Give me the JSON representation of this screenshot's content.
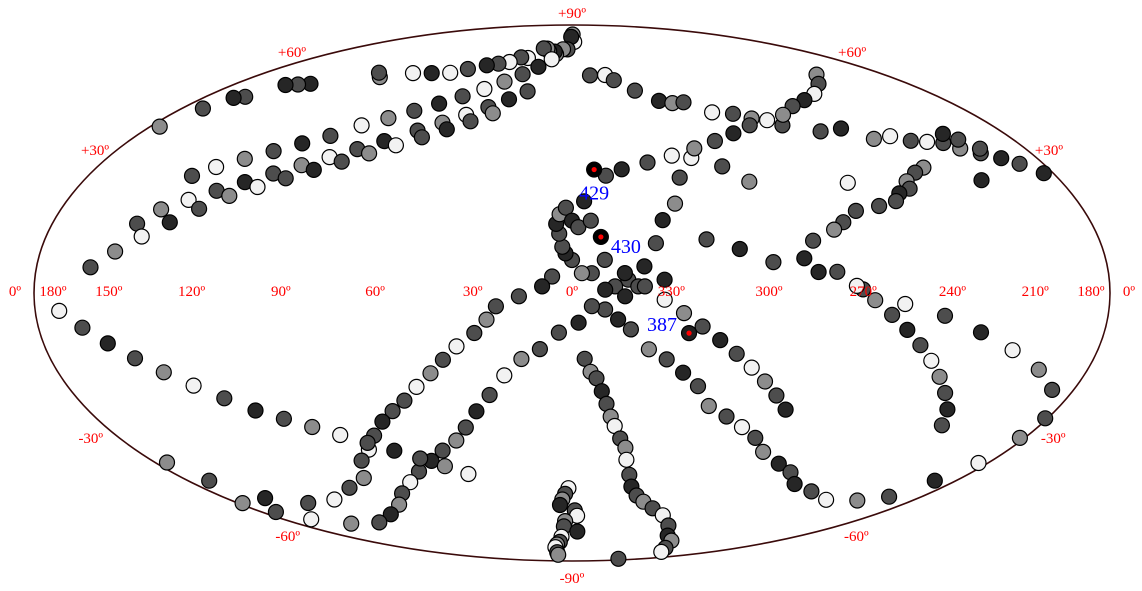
{
  "chart_data": {
    "type": "scatter",
    "projection": "aitoff-hammer",
    "longitude_direction": "decreasing-to-right",
    "x_range": [
      -180,
      180
    ],
    "y_range": [
      -90,
      90
    ],
    "grid": false,
    "longitude_labels": [
      {
        "lon": 180,
        "text": "180º",
        "side": "left"
      },
      {
        "lon": 150,
        "text": "150º"
      },
      {
        "lon": 120,
        "text": "120º"
      },
      {
        "lon": 90,
        "text": "90º"
      },
      {
        "lon": 60,
        "text": "60º"
      },
      {
        "lon": 30,
        "text": "30º"
      },
      {
        "lon": 0,
        "text": "0º"
      },
      {
        "lon": -30,
        "text": "330º"
      },
      {
        "lon": -60,
        "text": "300º"
      },
      {
        "lon": -90,
        "text": "270º"
      },
      {
        "lon": -120,
        "text": "240º"
      },
      {
        "lon": -150,
        "text": "210º"
      },
      {
        "lon": -180,
        "text": "180º",
        "side": "right"
      }
    ],
    "outer_labels": [
      {
        "text": "0º",
        "side": "left"
      },
      {
        "text": "0º",
        "side": "right"
      }
    ],
    "latitude_labels": [
      {
        "lat": 90,
        "text": "+90º"
      },
      {
        "lat": 60,
        "text": "+60º",
        "side": "left"
      },
      {
        "lat": 60,
        "text": "+60º",
        "side": "right"
      },
      {
        "lat": 30,
        "text": "+30º",
        "side": "left"
      },
      {
        "lat": 30,
        "text": "+30º",
        "side": "right"
      },
      {
        "lat": -30,
        "text": "-30º",
        "side": "left"
      },
      {
        "lat": -30,
        "text": "-30º",
        "side": "right"
      },
      {
        "lat": -60,
        "text": "-60º",
        "side": "left"
      },
      {
        "lat": -60,
        "text": "-60º",
        "side": "right"
      },
      {
        "lat": -90,
        "text": "-90º"
      }
    ],
    "highlighted_sources": [
      {
        "label": "429",
        "lon": -8,
        "lat": 38,
        "color": "#000000",
        "marker": "#ff0000",
        "label_side": "below"
      },
      {
        "label": "430",
        "lon": -9,
        "lat": 17,
        "color": "#000000",
        "marker": "#ff0000",
        "label_side": "right"
      },
      {
        "label": "387",
        "lon": -36,
        "lat": -12,
        "color": "#202020",
        "marker": "#ff0000",
        "label_side": "left"
      }
    ],
    "shade_palette": {
      "0": "#f2f2f2",
      "1": "#8c8c8c",
      "2": "#4d4d4d",
      "3": "#262626"
    },
    "points": [
      [
        -2,
        86,
        1
      ],
      [
        -4,
        83,
        0
      ],
      [
        2,
        85,
        3
      ],
      [
        6,
        80,
        2
      ],
      [
        12,
        80,
        1
      ],
      [
        18,
        78,
        1
      ],
      [
        21,
        79,
        3
      ],
      [
        28,
        79,
        2
      ],
      [
        33,
        80,
        1
      ],
      [
        38,
        80,
        2
      ],
      [
        44,
        76,
        0
      ],
      [
        51,
        76,
        2
      ],
      [
        56,
        74,
        0
      ],
      [
        63,
        73,
        2
      ],
      [
        70,
        72,
        3
      ],
      [
        79,
        70,
        2
      ],
      [
        86,
        68,
        0
      ],
      [
        97,
        67,
        3
      ],
      [
        108,
        66,
        0
      ],
      [
        121,
        63,
        1
      ],
      [
        127,
        64,
        2
      ],
      [
        147,
        57,
        3
      ],
      [
        152,
        56,
        2
      ],
      [
        157,
        55,
        3
      ],
      [
        163,
        50,
        2
      ],
      [
        167,
        49,
        3
      ],
      [
        171,
        45,
        2
      ],
      [
        176,
        39,
        1
      ],
      [
        -13,
        70,
        2
      ],
      [
        -24,
        70,
        0
      ],
      [
        -28,
        68,
        2
      ],
      [
        -37,
        64,
        2
      ],
      [
        -46,
        60,
        3
      ],
      [
        -52,
        59,
        1
      ],
      [
        -58,
        59,
        2
      ],
      [
        -67,
        55,
        0
      ],
      [
        -76,
        54,
        2
      ],
      [
        -82,
        52,
        1
      ],
      [
        -92,
        49,
        2
      ],
      [
        -105,
        46,
        2
      ],
      [
        -115,
        46,
        3
      ],
      [
        -123,
        42,
        1
      ],
      [
        -131,
        42,
        0
      ],
      [
        -137,
        40,
        2
      ],
      [
        -143,
        39,
        0
      ],
      [
        -149,
        38,
        2
      ],
      [
        -153,
        36,
        1
      ],
      [
        -159,
        34,
        2
      ],
      [
        -165,
        32,
        3
      ],
      [
        -170,
        30,
        2
      ],
      [
        -176,
        27,
        3
      ],
      [
        -154,
        40,
        3
      ],
      [
        -157,
        38,
        2
      ],
      [
        -161,
        35,
        2
      ],
      [
        -148,
        28,
        3
      ],
      [
        -130,
        33,
        1
      ],
      [
        -125,
        32,
        2
      ],
      [
        -119,
        30,
        1
      ],
      [
        -118,
        28,
        2
      ],
      [
        -113,
        27,
        3
      ],
      [
        -110,
        25,
        2
      ],
      [
        -103,
        24,
        2
      ],
      [
        -97,
        31,
        0
      ],
      [
        -94,
        23,
        2
      ],
      [
        -88,
        20,
        2
      ],
      [
        -84,
        18,
        1
      ],
      [
        -76,
        15,
        2
      ],
      [
        -72,
        10,
        3
      ],
      [
        -62,
        33,
        1
      ],
      [
        -55,
        38,
        2
      ],
      [
        -45,
        41,
        0
      ],
      [
        -38,
        35,
        2
      ],
      [
        -34,
        27,
        1
      ],
      [
        -29,
        22,
        3
      ],
      [
        -26,
        15,
        2
      ],
      [
        -22,
        8,
        3
      ],
      [
        -17,
        4,
        2
      ],
      [
        -13,
        2,
        2
      ],
      [
        -10,
        1,
        3
      ],
      [
        -6,
        6,
        2
      ],
      [
        -3,
        6,
        1
      ],
      [
        0,
        10,
        2
      ],
      [
        2,
        12,
        3
      ],
      [
        3,
        14,
        2
      ],
      [
        4,
        18,
        2
      ],
      [
        5,
        21,
        3
      ],
      [
        4,
        24,
        1
      ],
      [
        2,
        26,
        2
      ],
      [
        0,
        22,
        3
      ],
      [
        -2,
        20,
        2
      ],
      [
        -4,
        28,
        3
      ],
      [
        -6,
        22,
        2
      ],
      [
        6,
        5,
        2
      ],
      [
        9,
        2,
        3
      ],
      [
        16,
        -1,
        2
      ],
      [
        23,
        -4,
        2
      ],
      [
        26,
        -8,
        1
      ],
      [
        30,
        -12,
        2
      ],
      [
        36,
        -16,
        0
      ],
      [
        41,
        -20,
        2
      ],
      [
        46,
        -24,
        1
      ],
      [
        52,
        -28,
        0
      ],
      [
        58,
        -32,
        2
      ],
      [
        64,
        -35,
        2
      ],
      [
        70,
        -38,
        3
      ],
      [
        77,
        -42,
        2
      ],
      [
        84,
        -46,
        0
      ],
      [
        92,
        -49,
        2
      ],
      [
        101,
        -54,
        1
      ],
      [
        115,
        -56,
        2
      ],
      [
        133,
        -58,
        0
      ],
      [
        149,
        -57,
        2
      ],
      [
        163,
        -53,
        3
      ],
      [
        171,
        -46,
        2
      ],
      [
        175,
        -40,
        1
      ],
      [
        -4,
        -20,
        2
      ],
      [
        -6,
        -24,
        1
      ],
      [
        -8,
        -26,
        2
      ],
      [
        -10,
        -30,
        3
      ],
      [
        -12,
        -34,
        2
      ],
      [
        -14,
        -38,
        1
      ],
      [
        -16,
        -41,
        0
      ],
      [
        -19,
        -45,
        2
      ],
      [
        -22,
        -48,
        1
      ],
      [
        -24,
        -52,
        0
      ],
      [
        -28,
        -57,
        2
      ],
      [
        -32,
        -61,
        3
      ],
      [
        -38,
        -64,
        2
      ],
      [
        -45,
        -66,
        1
      ],
      [
        -55,
        -68,
        2
      ],
      [
        -68,
        -70,
        0
      ],
      [
        -85,
        -73,
        2
      ],
      [
        -104,
        -76,
        3
      ],
      [
        -120,
        -77,
        1
      ],
      [
        -140,
        -79,
        2
      ],
      [
        -154,
        -80,
        0
      ],
      [
        -168,
        -85,
        2
      ],
      [
        2,
        -62,
        0
      ],
      [
        4,
        -64,
        2
      ],
      [
        6,
        -66,
        1
      ],
      [
        8,
        -68,
        3
      ],
      [
        -2,
        -70,
        2
      ],
      [
        -4,
        -72,
        0
      ],
      [
        6,
        -74,
        1
      ],
      [
        8,
        -76,
        2
      ],
      [
        -6,
        -78,
        3
      ],
      [
        14,
        -80,
        0
      ],
      [
        20,
        -82,
        2
      ],
      [
        28,
        -83,
        1
      ],
      [
        36,
        -84,
        0
      ],
      [
        48,
        -86,
        2
      ],
      [
        60,
        -87,
        1
      ],
      [
        -10,
        -5,
        2
      ],
      [
        -14,
        -8,
        3
      ],
      [
        -18,
        -11,
        2
      ],
      [
        -24,
        -17,
        1
      ],
      [
        -30,
        -20,
        2
      ],
      [
        -36,
        -24,
        3
      ],
      [
        -42,
        -28,
        2
      ],
      [
        -48,
        -34,
        1
      ],
      [
        -56,
        -37,
        2
      ],
      [
        -64,
        -40,
        0
      ],
      [
        -72,
        -43,
        2
      ],
      [
        -80,
        -47,
        1
      ],
      [
        -92,
        -50,
        3
      ],
      [
        -102,
        -52,
        2
      ],
      [
        -112,
        -55,
        3
      ],
      [
        -126,
        -56,
        2
      ],
      [
        -141,
        -57,
        0
      ],
      [
        -156,
        -55,
        1
      ],
      [
        -166,
        -52,
        2
      ],
      [
        -171,
        -46,
        3
      ],
      [
        -176,
        -40,
        0
      ],
      [
        -178,
        -33,
        1
      ],
      [
        -179,
        -28,
        2
      ],
      [
        -171,
        -22,
        2
      ],
      [
        -160,
        -18,
        1
      ],
      [
        -146,
        -14,
        0
      ],
      [
        -132,
        -10,
        3
      ],
      [
        -118,
        -6,
        2
      ],
      [
        -104,
        -3,
        0
      ],
      [
        -90,
        1,
        2
      ],
      [
        -76,
        6,
        3
      ],
      [
        -62,
        9,
        2
      ],
      [
        -52,
        13,
        3
      ],
      [
        -42,
        16,
        2
      ],
      [
        -28,
        4,
        3
      ],
      [
        -20,
        2,
        2
      ],
      [
        -16,
        -1,
        3
      ],
      [
        -6,
        -4,
        2
      ],
      [
        -2,
        -9,
        3
      ],
      [
        4,
        -12,
        2
      ],
      [
        10,
        -17,
        2
      ],
      [
        16,
        -20,
        1
      ],
      [
        22,
        -25,
        0
      ],
      [
        28,
        -31,
        2
      ],
      [
        34,
        -36,
        3
      ],
      [
        40,
        -41,
        2
      ],
      [
        46,
        -45,
        1
      ],
      [
        54,
        -48,
        2
      ],
      [
        62,
        -51,
        3
      ],
      [
        72,
        -54,
        2
      ],
      [
        82,
        -57,
        0
      ],
      [
        94,
        -60,
        2
      ],
      [
        106,
        -63,
        1
      ],
      [
        122,
        -65,
        3
      ],
      [
        140,
        -66,
        2
      ],
      [
        156,
        -64,
        1
      ],
      [
        168,
        -60,
        0
      ],
      [
        174,
        -56,
        2
      ],
      [
        178,
        -52,
        1
      ],
      [
        138,
        30,
        2
      ],
      [
        132,
        33,
        0
      ],
      [
        124,
        36,
        1
      ],
      [
        116,
        39,
        2
      ],
      [
        108,
        42,
        3
      ],
      [
        100,
        45,
        2
      ],
      [
        92,
        49,
        0
      ],
      [
        84,
        52,
        1
      ],
      [
        76,
        55,
        2
      ],
      [
        68,
        58,
        3
      ],
      [
        60,
        61,
        2
      ],
      [
        52,
        64,
        0
      ],
      [
        44,
        67,
        1
      ],
      [
        36,
        70,
        2
      ],
      [
        28,
        73,
        3
      ],
      [
        20,
        76,
        0
      ],
      [
        146,
        17,
        2
      ],
      [
        140,
        21,
        1
      ],
      [
        132,
        24,
        0
      ],
      [
        124,
        27,
        2
      ],
      [
        116,
        30,
        3
      ],
      [
        108,
        33,
        2
      ],
      [
        100,
        36,
        1
      ],
      [
        92,
        39,
        0
      ],
      [
        84,
        42,
        2
      ],
      [
        76,
        45,
        3
      ],
      [
        66,
        49,
        2
      ],
      [
        58,
        52,
        1
      ],
      [
        50,
        55,
        0
      ],
      [
        42,
        58,
        2
      ],
      [
        34,
        61,
        3
      ],
      [
        26,
        64,
        2
      ],
      [
        158,
        6,
        2
      ],
      [
        150,
        10,
        1
      ],
      [
        142,
        14,
        0
      ],
      [
        134,
        18,
        3
      ],
      [
        126,
        22,
        2
      ],
      [
        118,
        26,
        1
      ],
      [
        110,
        29,
        0
      ],
      [
        102,
        32,
        2
      ],
      [
        94,
        35,
        3
      ],
      [
        86,
        38,
        2
      ],
      [
        78,
        41,
        1
      ],
      [
        70,
        44,
        0
      ],
      [
        62,
        47,
        2
      ],
      [
        54,
        50,
        3
      ],
      [
        46,
        53,
        2
      ],
      [
        38,
        56,
        1
      ],
      [
        170,
        -4,
        0
      ],
      [
        162,
        -8,
        2
      ],
      [
        154,
        -12,
        3
      ],
      [
        146,
        -16,
        2
      ],
      [
        138,
        -20,
        1
      ],
      [
        130,
        -24,
        0
      ],
      [
        122,
        -28,
        2
      ],
      [
        114,
        -32,
        3
      ],
      [
        106,
        -35,
        2
      ],
      [
        98,
        -38,
        1
      ],
      [
        90,
        -41,
        0
      ],
      [
        82,
        -44,
        2
      ],
      [
        74,
        -47,
        3
      ],
      [
        66,
        -50,
        2
      ],
      [
        58,
        -53,
        1
      ],
      [
        50,
        -56,
        0
      ],
      [
        -140,
        -34,
        2
      ],
      [
        -136,
        -30,
        3
      ],
      [
        -130,
        -26,
        2
      ],
      [
        -124,
        -22,
        1
      ],
      [
        -118,
        -18,
        0
      ],
      [
        -112,
        -14,
        2
      ],
      [
        -106,
        -10,
        3
      ],
      [
        -100,
        -6,
        2
      ],
      [
        -94,
        -2,
        1
      ],
      [
        -88,
        2,
        0
      ],
      [
        -82,
        6,
        2
      ],
      [
        -76,
        -34,
        3
      ],
      [
        -70,
        -30,
        2
      ],
      [
        -64,
        -26,
        1
      ],
      [
        -58,
        -22,
        0
      ],
      [
        -52,
        -18,
        2
      ],
      [
        -46,
        -14,
        3
      ],
      [
        -40,
        -10,
        2
      ],
      [
        -34,
        -6,
        1
      ],
      [
        -28,
        -2,
        0
      ],
      [
        -22,
        2,
        2
      ],
      [
        -16,
        6,
        3
      ],
      [
        -10,
        10,
        2
      ],
      [
        -150,
        60,
        1
      ],
      [
        -140,
        58,
        2
      ],
      [
        -128,
        56,
        0
      ],
      [
        -118,
        55,
        3
      ],
      [
        -108,
        54,
        2
      ],
      [
        -98,
        52,
        1
      ],
      [
        -88,
        51,
        0
      ],
      [
        -78,
        50,
        2
      ],
      [
        -68,
        48,
        3
      ],
      [
        -58,
        46,
        2
      ],
      [
        -48,
        44,
        1
      ],
      [
        -38,
        42,
        0
      ],
      [
        -28,
        40,
        2
      ],
      [
        -18,
        38,
        3
      ],
      [
        -12,
        36,
        2
      ]
    ]
  }
}
